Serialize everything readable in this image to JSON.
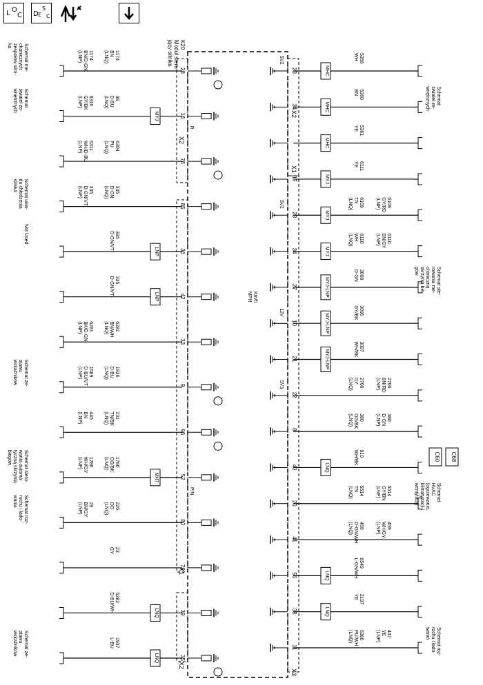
{
  "toolbar": {
    "loc": {
      "a": "L",
      "b": "O",
      "c": "C"
    },
    "desc": {
      "a": "D",
      "b": "E",
      "c": "S",
      "d": "C"
    },
    "sync_icon": "swap-tool-icon",
    "download_icon": "download-arrow-icon"
  },
  "module": {
    "title": "K20\nModuł steru-\njący silnika",
    "conn_x1": "X1",
    "conn_x2": "X2",
    "conn_x3": "X3"
  },
  "left_pins": [
    {
      "pin": "28",
      "c1": "1174\nBN/D-GN\n(LNP)",
      "c2": "1174\nBN\n(LNQ)",
      "label": "Schemat me-\nchanicznych\nzespołów silni-\nka",
      "icon": "engine-mechanical-icon"
    },
    {
      "pin": "16",
      "c1": "6316\nGY/BK\n(LNP)",
      "c2": "38\nD-BU\n(LNQ)",
      "box": "MYJ",
      "label": "Schemat\nświateł ze-\nwnętrznych",
      "sub": "R"
    },
    {
      "pin": "78",
      "c1": "6311\nWH/D-BU\n(LNP)",
      "c2": "6304\nPU\n(LNQ)",
      "icon": "brake-icon"
    },
    {
      "pin": "85",
      "c1": "335\nD-GN/VT\n(LNP)",
      "c2": "335\nD-GN\n(LNQ)",
      "label": "Schemat ukła-\ndu chłodzenia\nsilnika"
    },
    {
      "pin": "36",
      "c2": "335\nD-GN/VT",
      "box": "LNP",
      "label": "Not Used"
    },
    {
      "pin": "42",
      "c2": "335\nD-GN/VT",
      "box": "LNP"
    },
    {
      "pin": "33",
      "c1": "6281\nBK/D-GN\n(LNP)",
      "c2": "6281\nBN/WH\n(LNQ)"
    },
    {
      "pin": "9",
      "c1": "1589\nD-BU/VT\n(LNP)",
      "c2": "1936\nD-BU\n(LNQ)",
      "label": "Schemat ze-\nstawu\nwskaźników",
      "icon": "fuel-icon"
    },
    {
      "pin": "96",
      "c1": "445\nBN\n(LNP)",
      "c2": "231\nTN/BK\n(LNQ)",
      "icon": "oil-icon"
    },
    {
      "pin": "52",
      "c1": "1786\nWH/GY\n(LNP)",
      "c2": "1786\nOG/BK\n(LNQ)",
      "box": "MH7",
      "label": "Schemat stero-\nwania automa-\ntyczną skrzynią\nbiegów",
      "sub": "P/N"
    },
    {
      "pin": "80",
      "c1": "29\nBN/GY\n(LNP)",
      "c2": "225\nOG\n(LNQ)",
      "label": "Schemat roz-\nruchu i łado-\nwania"
    },
    {
      "pin": "79",
      "c2": "23\nGY"
    },
    {
      "pin": "39",
      "c2": "5282\nD-BU/WH",
      "box": "LNQ"
    },
    {
      "pin": "35",
      "c2": "1937\nL-BU",
      "box": "LNQ",
      "label": "Schemat ze-\nstawu\nwskaźników",
      "icon": "fuel-icon"
    }
  ],
  "right_pins": [
    {
      "pin": "23",
      "volt": "5V2",
      "box": "MHC",
      "c": "5359\nWH"
    },
    {
      "pin": "34",
      "box": "MHC",
      "c": "5360\nBN",
      "label": "Schemat\nświateł ze-\nwnętrznych"
    },
    {
      "pin": "",
      "box": "MHC",
      "c": "5361\nYE"
    },
    {
      "pin": "17",
      "box": "MYJ",
      "c": "6111\nYE"
    },
    {
      "pin": "23",
      "volt": "5V2",
      "box": "MYJ",
      "c": "6109\nTN\n(LNQ)",
      "c2": "6109\nGY/RD\n(LNP)"
    },
    {
      "pin": "34",
      "box": "MYJ",
      "c": "6110\nWH\n(LNQ)",
      "c2": "6110\nBN/GY\n(LNP)"
    },
    {
      "pin": "27",
      "box": "MYJ-LNP",
      "c": "3098\nD-GN",
      "label": "Schemat ste-\nrowania me-\nchaniczną\nskrzynią bie-\ngów",
      "sub": "Km/h\nMPH"
    },
    {
      "pin": "10",
      "volt": "12V",
      "box": "MYJ-LNP",
      "c": "3096\nGY/BK"
    },
    {
      "pin": "21",
      "box": "MYJ-LNP",
      "c": "3097\nWH/BK"
    },
    {
      "pin": "22",
      "volt": "5V3",
      "c": "2700\nGY\n(LNQ)",
      "c2": "2700\nBN/RD\n(LNP)"
    },
    {
      "pin": "8",
      "c": "380\nOG/BK\n(LNQ)",
      "c2": "380\nD-GN\n(LNP)"
    },
    {
      "pin": "40",
      "box": "LNQ",
      "c": "910\nWH/BK"
    },
    {
      "pin": "20",
      "c": "5514\nTN\n(LNQ)",
      "c2": "5514\nGY/BN\n(LNP)",
      "label": "Schemat\nHVAC\n(ogrzewania,\nklimatyzacji i\nwentylacji)"
    },
    {
      "pin": "41",
      "c": "459\nD-GN/WH\n(LNQ)",
      "c2": "459\nWH/GY\n(LNP)"
    },
    {
      "pin": "56",
      "box": "LNQ",
      "c": "6549\nL-GN/WH"
    },
    {
      "pin": "38",
      "box": "LNQ",
      "c": "2197\nYE"
    },
    {
      "pin": "11",
      "c": "6386\nPU/WH\n(LNQ)",
      "c2": "447\nYE\n(LNP)",
      "label": "Schemat roz-\nruchu i łado-\nwania"
    }
  ],
  "options": {
    "c60": "C60",
    "c68": "C68"
  }
}
